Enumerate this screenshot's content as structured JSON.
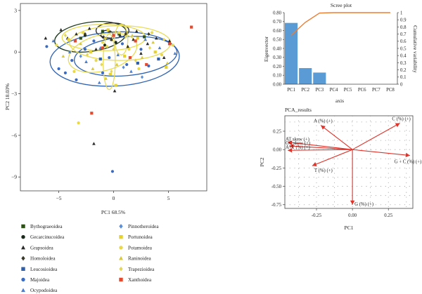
{
  "chart_data": [
    {
      "type": "scatter",
      "xlabel": "PC1 68.5%",
      "ylabel": "PC2 18.03%",
      "xlim": [
        -8.5,
        8.5
      ],
      "ylim": [
        -10,
        3.5
      ],
      "xticks": [
        -5,
        0,
        5
      ],
      "yticks": [
        3,
        0,
        -3,
        -6,
        -9
      ],
      "legend_position": "bottom",
      "series": [
        {
          "name": "Bythograeoidea",
          "color": "#2d5016",
          "marker": "square",
          "points": [
            [
              -1.0,
              1.5
            ],
            [
              0.5,
              1.3
            ],
            [
              2.8,
              1.1
            ],
            [
              -3.0,
              1.0
            ]
          ]
        },
        {
          "name": "Gecarcinucoidea",
          "color": "#1a2a1a",
          "marker": "circle",
          "points": [
            [
              -2.6,
              1.2
            ],
            [
              -0.8,
              0.5
            ],
            [
              0.2,
              0.7
            ]
          ]
        },
        {
          "name": "Grapsoidea",
          "color": "#2b2b2b",
          "marker": "triangle",
          "points": [
            [
              -4.8,
              1.6
            ],
            [
              -4.2,
              1.0
            ],
            [
              -3.4,
              1.3
            ],
            [
              -2.2,
              1.7
            ],
            [
              -1.6,
              0.2
            ],
            [
              -0.9,
              1.1
            ],
            [
              -0.4,
              1.5
            ],
            [
              0.6,
              1.2
            ],
            [
              1.3,
              0.4
            ],
            [
              1.8,
              0.9
            ],
            [
              2.5,
              -0.1
            ],
            [
              3.1,
              0.6
            ],
            [
              3.9,
              1.0
            ],
            [
              4.6,
              -0.4
            ],
            [
              5.1,
              0.8
            ],
            [
              0.1,
              -2.8
            ],
            [
              -1.8,
              -6.6
            ],
            [
              -6.2,
              1.0
            ],
            [
              -0.2,
              0.9
            ],
            [
              2.1,
              1.5
            ]
          ]
        },
        {
          "name": "Homoloidea",
          "color": "#3a3a2a",
          "marker": "diamond",
          "points": [
            [
              -2.6,
              1.3
            ],
            [
              -0.2,
              0.9
            ],
            [
              1.1,
              1.3
            ],
            [
              3.2,
              1.3
            ]
          ]
        },
        {
          "name": "Leucosioidea",
          "color": "#2f5fa8",
          "marker": "square",
          "points": [
            [
              -1.2,
              -0.5
            ],
            [
              2.2,
              -0.8
            ],
            [
              4.1,
              -0.5
            ]
          ]
        },
        {
          "name": "Majoidea",
          "color": "#3a6cc4",
          "marker": "circle",
          "points": [
            [
              -5.0,
              -1.2
            ],
            [
              -3.8,
              -0.6
            ],
            [
              -3.4,
              -2.0
            ],
            [
              -2.6,
              0.2
            ],
            [
              -1.8,
              0.8
            ],
            [
              -1.0,
              -1.5
            ],
            [
              -0.4,
              -0.4
            ],
            [
              -0.1,
              -8.6
            ],
            [
              1.2,
              -0.9
            ],
            [
              2.5,
              0.2
            ],
            [
              3.2,
              -1.0
            ],
            [
              -6.1,
              0.4
            ],
            [
              -4.4,
              -1.5
            ],
            [
              0.8,
              0.6
            ]
          ]
        },
        {
          "name": "Ocypodoidea",
          "color": "#4a7fd0",
          "marker": "triangle",
          "points": [
            [
              -5.5,
              0.8
            ],
            [
              -4.0,
              0.0
            ],
            [
              -2.5,
              -0.7
            ],
            [
              -1.2,
              0.3
            ],
            [
              0.4,
              -0.2
            ],
            [
              1.6,
              -1.4
            ],
            [
              2.9,
              0.9
            ],
            [
              4.2,
              0.3
            ],
            [
              5.6,
              -0.1
            ],
            [
              -1.3,
              -2.2
            ]
          ]
        },
        {
          "name": "Pinnotheroidea",
          "color": "#5b8fd8",
          "marker": "diamond",
          "points": [
            [
              -3.0,
              -0.3
            ],
            [
              0.9,
              -1.1
            ],
            [
              2.6,
              -1.8
            ]
          ]
        },
        {
          "name": "Portunoidea",
          "color": "#e6d22a",
          "marker": "square",
          "points": [
            [
              -4.1,
              0.9
            ],
            [
              -2.1,
              0.0
            ],
            [
              -0.5,
              1.6
            ],
            [
              1.0,
              -0.3
            ],
            [
              2.2,
              1.0
            ],
            [
              3.8,
              0.0
            ],
            [
              4.8,
              -1.1
            ],
            [
              0.2,
              -2.4
            ],
            [
              -0.3,
              -1.6
            ]
          ]
        },
        {
          "name": "Potamoidea",
          "color": "#e8d84a",
          "marker": "circle",
          "points": [
            [
              -5.2,
              0.5
            ],
            [
              -3.6,
              -1.4
            ],
            [
              -2.8,
              1.4
            ],
            [
              -1.6,
              -0.6
            ],
            [
              -0.6,
              0.4
            ],
            [
              0.5,
              1.4
            ],
            [
              1.4,
              0.2
            ],
            [
              2.3,
              -1.2
            ],
            [
              3.5,
              1.4
            ],
            [
              4.4,
              -0.2
            ],
            [
              5.4,
              0.5
            ],
            [
              -3.2,
              -5.1
            ],
            [
              -1.0,
              0.7
            ]
          ]
        },
        {
          "name": "Raninoidea",
          "color": "#d9c935",
          "marker": "triangle",
          "points": [
            [
              -4.6,
              -0.3
            ],
            [
              -3.0,
              0.6
            ],
            [
              -1.9,
              -1.2
            ],
            [
              -0.8,
              1.0
            ],
            [
              0.3,
              -0.9
            ],
            [
              1.7,
              1.2
            ],
            [
              2.6,
              -0.4
            ],
            [
              3.6,
              0.7
            ],
            [
              4.9,
              -0.8
            ],
            [
              -0.7,
              -1.9
            ]
          ]
        },
        {
          "name": "Trapezioidea",
          "color": "#e4d65a",
          "marker": "diamond",
          "points": [
            [
              -4.4,
              1.2
            ],
            [
              -2.4,
              -0.2
            ],
            [
              -1.1,
              -0.9
            ],
            [
              0.0,
              0.2
            ],
            [
              1.1,
              1.1
            ],
            [
              2.0,
              -0.6
            ],
            [
              3.3,
              0.3
            ],
            [
              4.6,
              0.9
            ],
            [
              -0.2,
              -1.4
            ]
          ]
        },
        {
          "name": "Xanthoidea",
          "color": "#e64a2e",
          "marker": "square",
          "points": [
            [
              -2.0,
              -4.4
            ],
            [
              0.0,
              1.2
            ],
            [
              2.0,
              0.8
            ],
            [
              3.0,
              -0.9
            ],
            [
              5.1,
              0.6
            ],
            [
              7.1,
              1.8
            ],
            [
              -1.0,
              0.3
            ],
            [
              -3.5,
              0.8
            ],
            [
              1.5,
              -0.4
            ]
          ]
        }
      ],
      "ellipses": [
        {
          "cx": -2.1,
          "cy": 1.1,
          "rx": 3.3,
          "ry": 1.05,
          "angle": 8,
          "color": "#1d3a1d"
        },
        {
          "cx": -0.1,
          "cy": 1.55,
          "rx": 1.5,
          "ry": 0.55,
          "angle": 0,
          "color": "#2a2a2a"
        },
        {
          "cx": -0.6,
          "cy": 1.25,
          "rx": 0.55,
          "ry": 0.32,
          "angle": 0,
          "color": "#2a2a2a"
        },
        {
          "cx": 0.1,
          "cy": -0.5,
          "rx": 5.9,
          "ry": 1.95,
          "angle": 3,
          "color": "#2f63b3"
        },
        {
          "cx": 1.1,
          "cy": -0.3,
          "rx": 4.7,
          "ry": 1.4,
          "angle": 5,
          "color": "#2f63b3"
        },
        {
          "cx": -0.9,
          "cy": 1.05,
          "rx": 3.8,
          "ry": 0.95,
          "angle": 0,
          "color": "#e8dc55"
        },
        {
          "cx": 0.6,
          "cy": 0.65,
          "rx": 4.6,
          "ry": 1.25,
          "angle": 0,
          "color": "#e8dc55"
        },
        {
          "cx": -1.0,
          "cy": -0.05,
          "rx": 3.2,
          "ry": 1.3,
          "angle": 15,
          "color": "#e8dc55"
        },
        {
          "cx": -0.4,
          "cy": -0.7,
          "rx": 0.55,
          "ry": 2.0,
          "angle": 0,
          "color": "#e8dc55"
        },
        {
          "cx": 0.7,
          "cy": 0.9,
          "rx": 0.6,
          "ry": 1.1,
          "angle": 0,
          "color": "#e8dc55"
        }
      ]
    },
    {
      "type": "bar",
      "title": "Scree plot",
      "xlabel": "axis",
      "ylabel": "Eigenvector",
      "y2label": "Cumulative variability",
      "categories": [
        "PC1",
        "PC2",
        "PC3",
        "PC4",
        "PC5",
        "PC6",
        "PC7",
        "PC8"
      ],
      "values": [
        0.685,
        0.18,
        0.13,
        0.0,
        0.0,
        0.0,
        0.0,
        0.0
      ],
      "cumulative": [
        0.685,
        0.865,
        0.995,
        1.0,
        1.0,
        1.0,
        1.0,
        1.0
      ],
      "ylim": [
        0,
        0.8
      ],
      "yticks": [
        "0.00",
        "0.10",
        "0.20",
        "0.30",
        "0.40",
        "0.50",
        "0.60",
        "0.70",
        "0.80"
      ],
      "y2lim": [
        0,
        1
      ],
      "y2ticks": [
        "0",
        "0.1",
        "0.2",
        "0.3",
        "0.4",
        "0.5",
        "0.6",
        "0.7",
        "0.8",
        "0.9",
        "1"
      ],
      "bar_color": "#5b9bd5",
      "line_color": "#ed7d31"
    },
    {
      "type": "biplot",
      "title": "PCA_results",
      "xlabel": "PC1",
      "ylabel": "PC2",
      "xlim": [
        -0.47,
        0.42
      ],
      "ylim": [
        -0.8,
        0.46
      ],
      "xticks": [
        "-0.25",
        "0.00",
        "0.25"
      ],
      "yticks": [
        "0.25",
        "0.00",
        "-0.25",
        "-0.50",
        "-0.75"
      ],
      "arrow_color": "#e0332a",
      "vectors": [
        {
          "label": "A (%) (+)",
          "x": -0.22,
          "y": 0.33
        },
        {
          "label": "C (%) (+)",
          "x": 0.33,
          "y": 0.36
        },
        {
          "label": "AT skew (+)",
          "x": -0.45,
          "y": 0.1
        },
        {
          "label": "GC skew (+)",
          "x": -0.44,
          "y": 0.05
        },
        {
          "label": "A+T (%) (+)",
          "x": -0.45,
          "y": -0.01
        },
        {
          "label": "G + C (%) (+)",
          "x": 0.4,
          "y": -0.08
        },
        {
          "label": "T (%) (+)",
          "x": -0.28,
          "y": -0.22
        },
        {
          "label": "G (%) (+)",
          "x": 0.0,
          "y": -0.75
        }
      ]
    }
  ]
}
